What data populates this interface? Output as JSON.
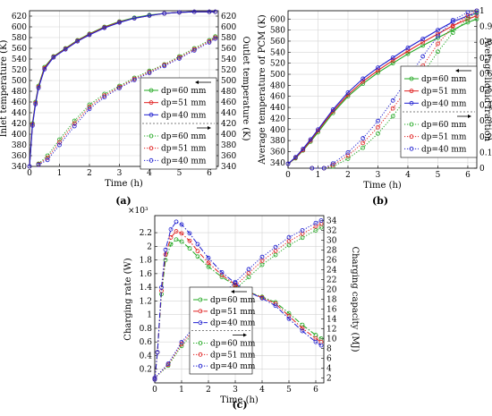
{
  "colors": {
    "green": "#22a822",
    "red": "#e02020",
    "blue": "#2020d0",
    "grid": "#d4d4d4",
    "frame": "#000000"
  },
  "chart_data": [
    {
      "id": "a",
      "type": "line",
      "caption": "(a)",
      "xlabel": "Time (h)",
      "ylabel_left": "Inlet temperature (K)",
      "ylabel_right": "Outlet temperature (K)",
      "xlim": [
        0,
        6.3
      ],
      "ylim_left": [
        340,
        630
      ],
      "ylim_right": [
        340,
        630
      ],
      "x_ticks": [
        0,
        1,
        2,
        3,
        4,
        5,
        6
      ],
      "y_ticks_left": [
        340,
        360,
        380,
        400,
        420,
        440,
        460,
        480,
        500,
        520,
        540,
        560,
        580,
        600,
        620
      ],
      "y_ticks_right": [
        340,
        360,
        380,
        400,
        420,
        440,
        460,
        480,
        500,
        520,
        540,
        560,
        580,
        600,
        620
      ],
      "grid": true,
      "legend": {
        "placement": "right-middle",
        "arrow_top": "left",
        "arrow_bottom": "right",
        "entries": [
          "dp=60 mm",
          "dp=51 mm",
          "dp=40 mm",
          "dp=60 mm",
          "dp=51 mm",
          "dp=40 mm"
        ]
      },
      "series": [
        {
          "name": "dp=60 mm",
          "axis": "left",
          "style": "solid",
          "color": "green",
          "x": [
            0,
            0.1,
            0.2,
            0.3,
            0.5,
            0.8,
            1.2,
            1.6,
            2,
            2.5,
            3,
            3.5,
            4,
            4.5,
            5,
            5.5,
            6,
            6.2
          ],
          "y": [
            340,
            420,
            460,
            490,
            525,
            545,
            560,
            575,
            587,
            600,
            610,
            617,
            622,
            625,
            627,
            628,
            628,
            628
          ]
        },
        {
          "name": "dp=51 mm",
          "axis": "left",
          "style": "solid",
          "color": "red",
          "x": [
            0,
            0.1,
            0.2,
            0.3,
            0.5,
            0.8,
            1.2,
            1.6,
            2,
            2.5,
            3,
            3.5,
            4,
            4.5,
            5,
            5.5,
            6,
            6.2
          ],
          "y": [
            340,
            418,
            458,
            488,
            523,
            544,
            559,
            574,
            586,
            599,
            609,
            616,
            621,
            625,
            627,
            628,
            628,
            628
          ]
        },
        {
          "name": "dp=40 mm",
          "axis": "left",
          "style": "solid",
          "color": "blue",
          "x": [
            0,
            0.1,
            0.2,
            0.3,
            0.5,
            0.8,
            1.2,
            1.6,
            2,
            2.5,
            3,
            3.5,
            4,
            4.5,
            5,
            5.5,
            6,
            6.2
          ],
          "y": [
            340,
            416,
            456,
            486,
            521,
            543,
            558,
            573,
            585,
            598,
            608,
            616,
            621,
            625,
            627,
            628,
            628,
            628
          ]
        },
        {
          "name": "dp=60 mm",
          "axis": "right",
          "style": "dotted",
          "color": "green",
          "x": [
            0.3,
            0.6,
            1,
            1.5,
            2,
            2.5,
            3,
            3.5,
            4,
            4.5,
            5,
            5.5,
            6,
            6.2
          ],
          "y": [
            345,
            360,
            390,
            425,
            455,
            475,
            490,
            505,
            518,
            530,
            545,
            560,
            575,
            582
          ]
        },
        {
          "name": "dp=51 mm",
          "axis": "right",
          "style": "dotted",
          "color": "red",
          "x": [
            0.3,
            0.6,
            1,
            1.5,
            2,
            2.5,
            3,
            3.5,
            4,
            4.5,
            5,
            5.5,
            6,
            6.2
          ],
          "y": [
            344,
            356,
            385,
            420,
            451,
            472,
            488,
            503,
            516,
            529,
            543,
            558,
            573,
            580
          ]
        },
        {
          "name": "dp=40 mm",
          "axis": "right",
          "style": "dotted",
          "color": "blue",
          "x": [
            0.3,
            0.6,
            1,
            1.5,
            2,
            2.5,
            3,
            3.5,
            4,
            4.5,
            5,
            5.5,
            6,
            6.2
          ],
          "y": [
            343,
            352,
            380,
            415,
            447,
            469,
            486,
            501,
            514,
            527,
            541,
            556,
            571,
            578
          ]
        }
      ]
    },
    {
      "id": "b",
      "type": "line",
      "caption": "(b)",
      "xlabel": "Time (h)",
      "ylabel_left": "Average temperature of PCM (K)",
      "ylabel_right": "Average liquid fraction",
      "xlim": [
        0,
        6.3
      ],
      "ylim_left": [
        330,
        615
      ],
      "ylim_right": [
        0,
        1
      ],
      "x_ticks": [
        0,
        1,
        2,
        3,
        4,
        5,
        6
      ],
      "y_ticks_left": [
        340,
        360,
        380,
        400,
        420,
        440,
        460,
        480,
        500,
        520,
        540,
        560,
        580,
        600
      ],
      "y_ticks_right": [
        0,
        0.1,
        0.2,
        0.3,
        0.4,
        0.5,
        0.6,
        0.7,
        0.8,
        0.9,
        1
      ],
      "grid": true,
      "legend": {
        "placement": "right-middle",
        "arrow_top": "left",
        "arrow_bottom": "right",
        "entries": [
          "dp=60 mm",
          "dp=51 mm",
          "dp=40 mm",
          "dp=60 mm",
          "dp=51 mm",
          "dp=40 mm"
        ]
      },
      "series": [
        {
          "name": "dp=60 mm",
          "axis": "left",
          "style": "solid",
          "color": "green",
          "x": [
            0,
            0.25,
            0.5,
            0.75,
            1,
            1.5,
            2,
            2.5,
            3,
            3.5,
            4,
            4.5,
            5,
            5.5,
            6,
            6.3
          ],
          "y": [
            338,
            348,
            362,
            378,
            395,
            430,
            460,
            483,
            503,
            520,
            537,
            552,
            566,
            580,
            594,
            600
          ]
        },
        {
          "name": "dp=51 mm",
          "axis": "left",
          "style": "solid",
          "color": "red",
          "x": [
            0,
            0.25,
            0.5,
            0.75,
            1,
            1.5,
            2,
            2.5,
            3,
            3.5,
            4,
            4.5,
            5,
            5.5,
            6,
            6.3
          ],
          "y": [
            338,
            349,
            363,
            380,
            398,
            433,
            463,
            487,
            507,
            525,
            542,
            558,
            573,
            588,
            600,
            606
          ]
        },
        {
          "name": "dp=40 mm",
          "axis": "left",
          "style": "solid",
          "color": "blue",
          "x": [
            0,
            0.25,
            0.5,
            0.75,
            1,
            1.5,
            2,
            2.5,
            3,
            3.5,
            4,
            4.5,
            5,
            5.5,
            6,
            6.3
          ],
          "y": [
            338,
            350,
            365,
            382,
            400,
            436,
            467,
            492,
            512,
            530,
            548,
            564,
            580,
            595,
            606,
            611
          ]
        },
        {
          "name": "dp=60 mm",
          "axis": "right",
          "style": "dotted",
          "color": "green",
          "x": [
            0.8,
            1.2,
            1.5,
            2,
            2.5,
            3,
            3.5,
            4,
            4.5,
            5,
            5.5,
            6,
            6.3
          ],
          "y": [
            0,
            0,
            0.01,
            0.06,
            0.13,
            0.22,
            0.33,
            0.46,
            0.6,
            0.74,
            0.86,
            0.95,
            0.99
          ]
        },
        {
          "name": "dp=51 mm",
          "axis": "right",
          "style": "dotted",
          "color": "red",
          "x": [
            0.8,
            1.2,
            1.5,
            2,
            2.5,
            3,
            3.5,
            4,
            4.5,
            5,
            5.5,
            6,
            6.3
          ],
          "y": [
            0,
            0,
            0.02,
            0.08,
            0.16,
            0.26,
            0.38,
            0.51,
            0.65,
            0.79,
            0.9,
            0.97,
            1
          ]
        },
        {
          "name": "dp=40 mm",
          "axis": "right",
          "style": "dotted",
          "color": "blue",
          "x": [
            0.8,
            1.2,
            1.5,
            2,
            2.5,
            3,
            3.5,
            4,
            4.5,
            5,
            5.5,
            6,
            6.3
          ],
          "y": [
            0,
            0,
            0.03,
            0.1,
            0.19,
            0.3,
            0.43,
            0.57,
            0.71,
            0.84,
            0.94,
            0.99,
            1
          ]
        }
      ]
    },
    {
      "id": "c",
      "type": "line",
      "caption": "(c)",
      "xlabel": "Time (h)",
      "ylabel_left": "Charging rate (W)",
      "ylabel_right": "Charging capacity (MJ)",
      "left_multiplier": "×10³",
      "xlim": [
        0,
        6.3
      ],
      "ylim_left": [
        0,
        2.45
      ],
      "ylim_right": [
        1,
        35
      ],
      "x_ticks": [
        0,
        1,
        2,
        3,
        4,
        5,
        6
      ],
      "y_ticks_left": [
        0.2,
        0.4,
        0.6,
        0.8,
        1,
        1.2,
        1.4,
        1.6,
        1.8,
        2,
        2.2
      ],
      "y_ticks_right": [
        2,
        4,
        6,
        8,
        10,
        12,
        14,
        16,
        18,
        20,
        22,
        24,
        26,
        28,
        30,
        32,
        34
      ],
      "grid": true,
      "legend": {
        "placement": "bottom-left",
        "arrow_top": "left",
        "arrow_bottom": "right",
        "entries": [
          "dp=60 mm",
          "dp=51 mm",
          "dp=40 mm",
          "dp=60 mm",
          "dp=51 mm",
          "dp=40 mm"
        ]
      },
      "series": [
        {
          "name": "dp=60 mm",
          "axis": "left",
          "style": "dashdot",
          "color": "green",
          "x": [
            0,
            0.1,
            0.25,
            0.4,
            0.6,
            0.8,
            1,
            1.3,
            1.6,
            2,
            2.5,
            3,
            3.5,
            4,
            4.5,
            5,
            5.5,
            6,
            6.2
          ],
          "y": [
            0.05,
            0.45,
            1.3,
            1.8,
            2.03,
            2.1,
            2.07,
            1.97,
            1.85,
            1.7,
            1.55,
            1.43,
            1.33,
            1.26,
            1.18,
            1.02,
            0.85,
            0.7,
            0.65
          ]
        },
        {
          "name": "dp=51 mm",
          "axis": "left",
          "style": "dashdot",
          "color": "red",
          "x": [
            0,
            0.1,
            0.25,
            0.4,
            0.6,
            0.8,
            1,
            1.3,
            1.6,
            2,
            2.5,
            3,
            3.5,
            4,
            4.5,
            5,
            5.5,
            6,
            6.2
          ],
          "y": [
            0.05,
            0.45,
            1.35,
            1.88,
            2.13,
            2.22,
            2.19,
            2.08,
            1.93,
            1.76,
            1.58,
            1.44,
            1.33,
            1.25,
            1.16,
            0.98,
            0.8,
            0.65,
            0.6
          ]
        },
        {
          "name": "dp=40 mm",
          "axis": "left",
          "style": "dashdot",
          "color": "blue",
          "x": [
            0,
            0.1,
            0.25,
            0.4,
            0.6,
            0.8,
            1,
            1.3,
            1.6,
            2,
            2.5,
            3,
            3.5,
            4,
            4.5,
            5,
            5.5,
            6,
            6.2
          ],
          "y": [
            0.05,
            0.45,
            1.4,
            1.95,
            2.25,
            2.36,
            2.32,
            2.19,
            2.03,
            1.83,
            1.62,
            1.46,
            1.33,
            1.24,
            1.13,
            0.94,
            0.76,
            0.6,
            0.55
          ]
        },
        {
          "name": "dp=60 mm",
          "axis": "right",
          "style": "dotted",
          "color": "green",
          "x": [
            0,
            0.5,
            1,
            1.5,
            2,
            2.5,
            3,
            3.5,
            4,
            4.5,
            5,
            5.5,
            6,
            6.2
          ],
          "y": [
            2,
            4.5,
            8.5,
            11.5,
            14.5,
            17.5,
            20,
            22.5,
            25,
            27,
            29,
            30.5,
            32,
            32.6
          ]
        },
        {
          "name": "dp=51 mm",
          "axis": "right",
          "style": "dotted",
          "color": "red",
          "x": [
            0,
            0.5,
            1,
            1.5,
            2,
            2.5,
            3,
            3.5,
            4,
            4.5,
            5,
            5.5,
            6,
            6.2
          ],
          "y": [
            2,
            4.7,
            8.9,
            12,
            15.1,
            18.1,
            20.7,
            23.3,
            25.8,
            27.8,
            29.8,
            31.3,
            32.8,
            33.3
          ]
        },
        {
          "name": "dp=40 mm",
          "axis": "right",
          "style": "dotted",
          "color": "blue",
          "x": [
            0,
            0.5,
            1,
            1.5,
            2,
            2.5,
            3,
            3.5,
            4,
            4.5,
            5,
            5.5,
            6,
            6.2
          ],
          "y": [
            2,
            4.9,
            9.3,
            12.6,
            15.8,
            18.8,
            21.5,
            24.1,
            26.6,
            28.6,
            30.6,
            32,
            33.5,
            34
          ]
        }
      ]
    }
  ]
}
